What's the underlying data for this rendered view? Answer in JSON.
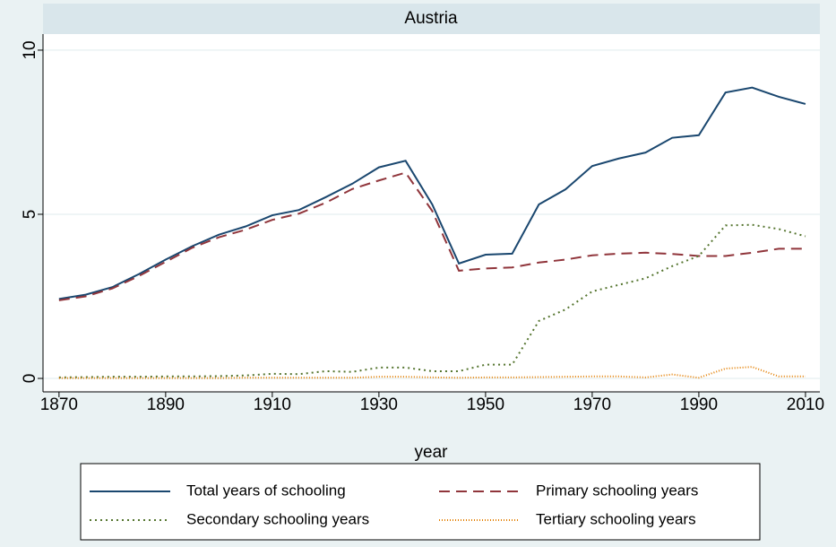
{
  "chart_data": {
    "type": "line",
    "title": "Austria",
    "xlabel": "year",
    "x": [
      1870,
      1875,
      1880,
      1885,
      1890,
      1895,
      1900,
      1905,
      1910,
      1915,
      1920,
      1925,
      1930,
      1935,
      1940,
      1945,
      1950,
      1955,
      1960,
      1965,
      1970,
      1975,
      1980,
      1985,
      1990,
      1995,
      2000,
      2005,
      2010
    ],
    "series": [
      {
        "name": "Total years of schooling",
        "color": "#1a476f",
        "dash": "none",
        "values": [
          2.42,
          2.55,
          2.78,
          3.18,
          3.62,
          4.03,
          4.38,
          4.63,
          4.97,
          5.13,
          5.52,
          5.93,
          6.43,
          6.63,
          5.3,
          3.5,
          3.77,
          3.8,
          5.3,
          5.76,
          6.47,
          6.7,
          6.88,
          7.33,
          7.41,
          8.71,
          8.86,
          8.58,
          8.36
        ]
      },
      {
        "name": "Primary schooling years",
        "color": "#90353b",
        "dash": "12 7",
        "values": [
          2.38,
          2.5,
          2.74,
          3.12,
          3.55,
          3.98,
          4.3,
          4.53,
          4.83,
          5.02,
          5.35,
          5.77,
          6.03,
          6.27,
          5.1,
          3.28,
          3.35,
          3.38,
          3.53,
          3.62,
          3.75,
          3.8,
          3.83,
          3.79,
          3.73,
          3.73,
          3.83,
          3.95,
          3.95
        ]
      },
      {
        "name": "Secondary schooling years",
        "color": "#55752f",
        "dash": "2 4",
        "values": [
          0.03,
          0.04,
          0.05,
          0.05,
          0.06,
          0.06,
          0.07,
          0.09,
          0.14,
          0.13,
          0.22,
          0.2,
          0.33,
          0.33,
          0.22,
          0.22,
          0.42,
          0.42,
          1.75,
          2.1,
          2.65,
          2.85,
          3.05,
          3.42,
          3.73,
          4.66,
          4.68,
          4.55,
          4.33
        ]
      },
      {
        "name": "Tertiary schooling years",
        "color": "#e37e00",
        "dash": "1 2",
        "values": [
          0.01,
          0.01,
          0.01,
          0.01,
          0.01,
          0.01,
          0.01,
          0.02,
          0.02,
          0.02,
          0.02,
          0.02,
          0.05,
          0.05,
          0.03,
          0.02,
          0.03,
          0.03,
          0.04,
          0.05,
          0.06,
          0.06,
          0.03,
          0.12,
          0.02,
          0.3,
          0.35,
          0.06,
          0.06
        ]
      }
    ],
    "xlim": [
      1867,
      2012.7
    ],
    "ylim": [
      -0.41,
      10.49
    ],
    "xticks": [
      1870,
      1890,
      1910,
      1930,
      1950,
      1970,
      1990,
      2010
    ],
    "yticks": [
      0,
      5,
      10
    ],
    "grid": true,
    "legend": "bottom"
  }
}
